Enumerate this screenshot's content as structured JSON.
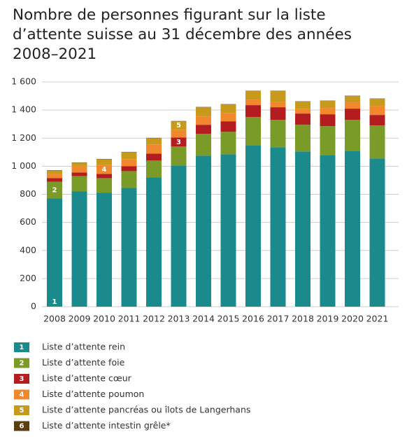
{
  "chart_data": {
    "type": "stacked-bar",
    "title": "Nombre de personnes figurant sur la liste d’attente suisse au 31 décembre des années 2008–2021",
    "categories": [
      "2008",
      "2009",
      "2010",
      "2011",
      "2012",
      "2013",
      "2014",
      "2015",
      "2016",
      "2017",
      "2018",
      "2019",
      "2020",
      "2021"
    ],
    "series": [
      {
        "key": "1",
        "name": "Liste d’attente rein",
        "color": "#1b8a8c",
        "values": [
          770,
          820,
          810,
          845,
          920,
          1005,
          1075,
          1085,
          1150,
          1135,
          1105,
          1080,
          1110,
          1055
        ]
      },
      {
        "key": "2",
        "name": "Liste d’attente foie",
        "color": "#7b9b29",
        "values": [
          120,
          110,
          105,
          120,
          120,
          135,
          155,
          160,
          200,
          195,
          190,
          205,
          220,
          235
        ]
      },
      {
        "key": "3",
        "name": "Liste d’attente cœur",
        "color": "#b31d1f",
        "values": [
          25,
          25,
          30,
          35,
          50,
          65,
          65,
          75,
          85,
          90,
          80,
          85,
          80,
          75
        ]
      },
      {
        "key": "4",
        "name": "Liste d’attente poumon",
        "color": "#f1892c",
        "values": [
          30,
          45,
          65,
          50,
          65,
          55,
          60,
          60,
          40,
          40,
          35,
          45,
          45,
          65
        ]
      },
      {
        "key": "5",
        "name": "Liste d’attente pancréas ou îlots de Langerhans",
        "color": "#c79a1c",
        "values": [
          25,
          25,
          40,
          50,
          45,
          60,
          65,
          60,
          60,
          75,
          50,
          50,
          45,
          50
        ]
      },
      {
        "key": "6",
        "name": "Liste d’attente intestin grêle*",
        "color": "#5c3d0f",
        "values": [
          2,
          2,
          2,
          2,
          2,
          2,
          2,
          2,
          2,
          2,
          2,
          2,
          2,
          2
        ]
      }
    ],
    "ylim": [
      0,
      1600
    ],
    "yticks": [
      0,
      200,
      400,
      600,
      800,
      {
        "value": 1000,
        "label": "1 000"
      },
      {
        "value": 1200,
        "label": "1 200"
      },
      {
        "value": 1400,
        "label": "1 400"
      },
      {
        "value": 1600,
        "label": "1 600"
      }
    ],
    "grid": true
  }
}
